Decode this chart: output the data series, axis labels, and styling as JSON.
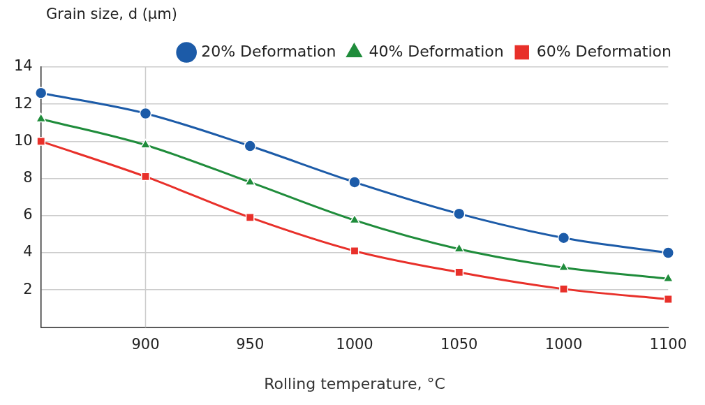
{
  "chart_data": {
    "type": "line",
    "ylabel": "Grain size, d (μm)",
    "xlabel": "Rolling temperature, °C",
    "categories": [
      null,
      "900",
      "950",
      "1000",
      "1050",
      "1000",
      "1100"
    ],
    "series": [
      {
        "name": "20% Deformation",
        "color": "#1c5ba8",
        "marker": "circle",
        "values": [
          12.6,
          11.5,
          9.75,
          7.8,
          6.1,
          4.8,
          4.0
        ]
      },
      {
        "name": "40% Deformation",
        "color": "#1f8c3b",
        "marker": "triangle",
        "values": [
          11.2,
          9.8,
          7.8,
          5.75,
          4.2,
          3.2,
          2.6
        ]
      },
      {
        "name": "60% Deformation",
        "color": "#e8302a",
        "marker": "square",
        "values": [
          10.0,
          8.1,
          5.9,
          4.1,
          2.95,
          2.05,
          1.5
        ]
      }
    ],
    "ylim": [
      0,
      14
    ],
    "yticks": [
      2,
      4,
      6,
      8,
      10,
      12,
      14
    ],
    "grid": "y",
    "legend": "top right",
    "line_style": "solid",
    "ref_lines": [
      {
        "axis": "x",
        "value": "900",
        "color": "#cccccc"
      }
    ]
  }
}
